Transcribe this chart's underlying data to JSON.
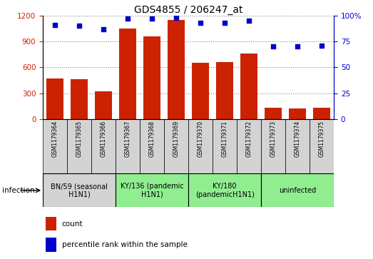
{
  "title": "GDS4855 / 206247_at",
  "samples": [
    "GSM1179364",
    "GSM1179365",
    "GSM1179366",
    "GSM1179367",
    "GSM1179368",
    "GSM1179369",
    "GSM1179370",
    "GSM1179371",
    "GSM1179372",
    "GSM1179373",
    "GSM1179374",
    "GSM1179375"
  ],
  "counts": [
    470,
    460,
    325,
    1050,
    960,
    1150,
    650,
    660,
    760,
    130,
    120,
    130
  ],
  "percentiles": [
    91,
    90,
    87,
    97,
    97,
    98,
    93,
    93,
    95,
    70,
    70,
    71
  ],
  "ylim_left": [
    0,
    1200
  ],
  "ylim_right": [
    0,
    100
  ],
  "yticks_left": [
    0,
    300,
    600,
    900,
    1200
  ],
  "yticks_right": [
    0,
    25,
    50,
    75,
    100
  ],
  "groups": [
    {
      "label": "BN/59 (seasonal\nH1N1)",
      "start": 0,
      "end": 3,
      "color": "#d3d3d3"
    },
    {
      "label": "KY/136 (pandemic\nH1N1)",
      "start": 3,
      "end": 6,
      "color": "#90ee90"
    },
    {
      "label": "KY/180\n(pandemicH1N1)",
      "start": 6,
      "end": 9,
      "color": "#90ee90"
    },
    {
      "label": "uninfected",
      "start": 9,
      "end": 12,
      "color": "#90ee90"
    }
  ],
  "bar_color": "#cc2200",
  "dot_color": "#0000cc",
  "grid_color": "#888888",
  "background_color": "#ffffff",
  "left_axis_color": "#cc2200",
  "right_axis_color": "#0000cc"
}
